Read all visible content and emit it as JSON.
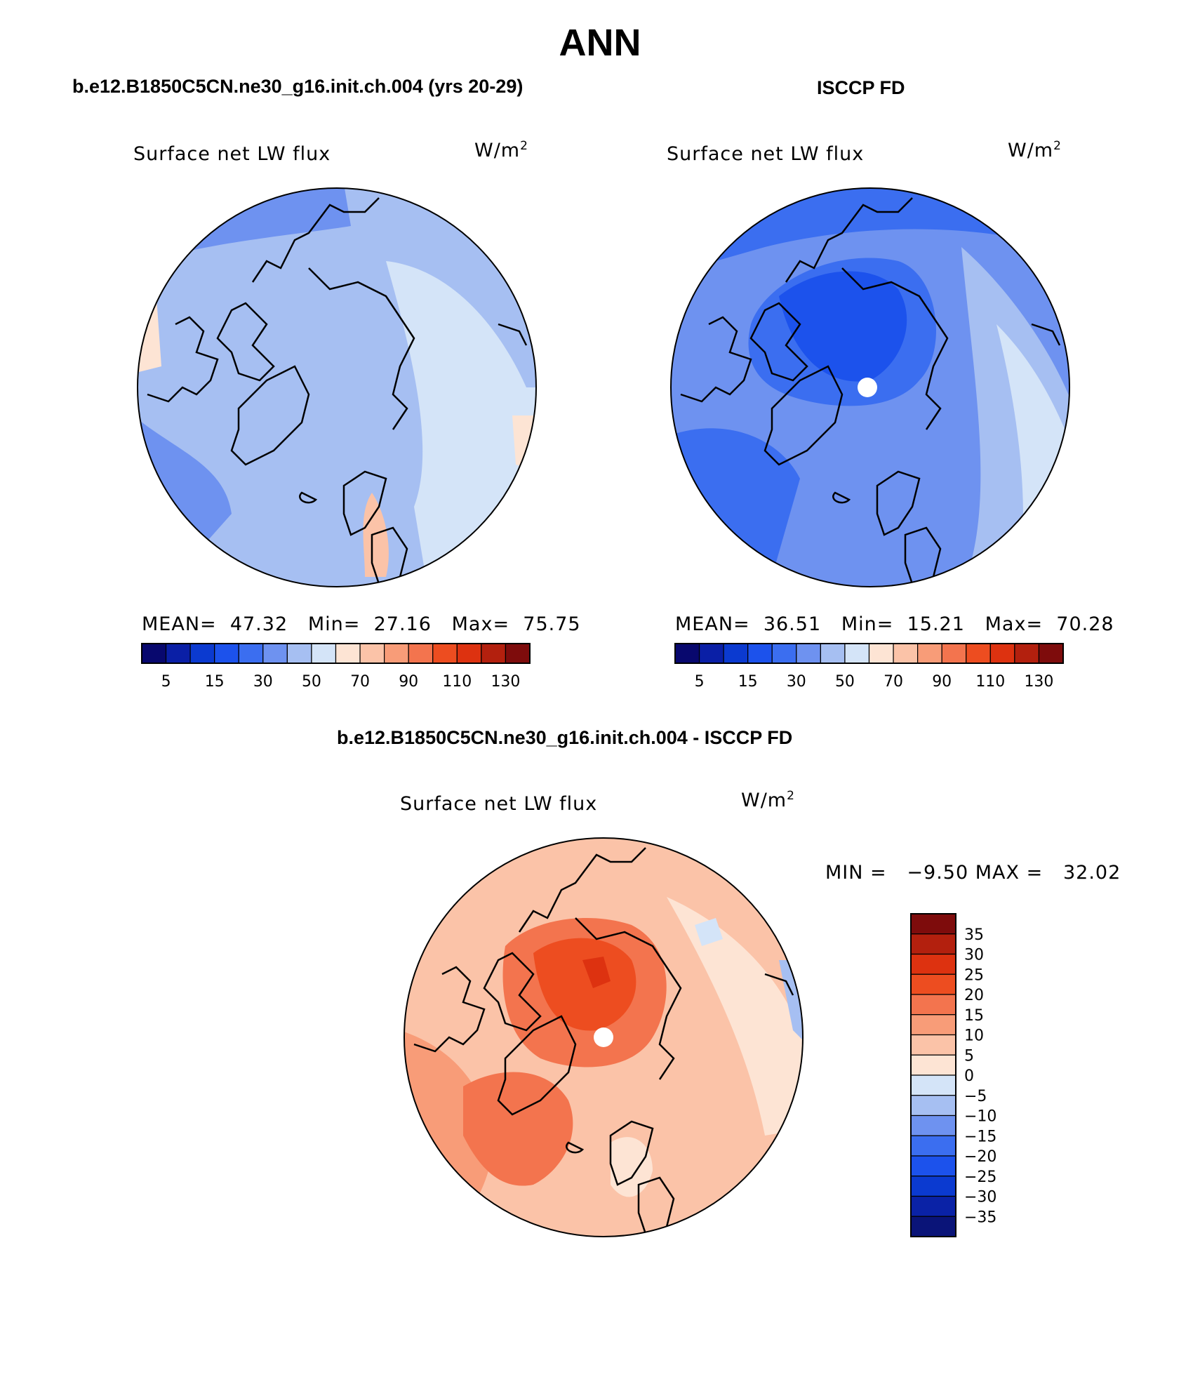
{
  "page": {
    "season": "ANN"
  },
  "panels": {
    "model": {
      "title": "b.e12.B1850C5CN.ne30_g16.init.ch.004 (yrs 20-29)",
      "variable": "Surface net LW flux",
      "units_base": "W/m",
      "units_exp": "2",
      "mean_label": "MEAN=",
      "mean": "47.32",
      "min_label": "Min=",
      "min": "27.16",
      "max_label": "Max=",
      "max": "75.75"
    },
    "obs": {
      "title": "ISCCP FD",
      "variable": "Surface net LW flux",
      "units_base": "W/m",
      "units_exp": "2",
      "mean_label": "MEAN=",
      "mean": "36.51",
      "min_label": "Min=",
      "min": "15.21",
      "max_label": "Max=",
      "max": "70.28"
    },
    "diff": {
      "title": "b.e12.B1850C5CN.ne30_g16.init.ch.004 - ISCCP FD",
      "variable": "Surface net LW flux",
      "units_base": "W/m",
      "units_exp": "2",
      "min_label": "MIN =",
      "min": "−9.50",
      "max_label": "MAX =",
      "max": "32.02"
    }
  },
  "colorbars": {
    "absolute": {
      "colors": [
        "#08086e",
        "#0a1fa6",
        "#0b3ad0",
        "#1c52ec",
        "#3b6ef0",
        "#6e92f0",
        "#a6bff2",
        "#d4e4f8",
        "#fde4d4",
        "#fbc3a8",
        "#f89c78",
        "#f3744e",
        "#ed4d20",
        "#dd3210",
        "#b3200e",
        "#7e0c0c"
      ],
      "tick_labels": [
        "5",
        "15",
        "30",
        "50",
        "70",
        "90",
        "110",
        "130"
      ]
    },
    "diff": {
      "colors": [
        "#0a1478",
        "#0a22a6",
        "#0b3ad0",
        "#1c52ec",
        "#3b6ef0",
        "#6e92f0",
        "#a6bff2",
        "#d4e4f8",
        "#fde4d4",
        "#fbc3a8",
        "#f89c78",
        "#f3744e",
        "#ed4d20",
        "#dd3210",
        "#b3200e",
        "#7e0c0c"
      ],
      "tick_labels": [
        "−35",
        "−30",
        "−25",
        "−20",
        "−15",
        "−10",
        "−5",
        "0",
        "5",
        "10",
        "15",
        "20",
        "25",
        "30",
        "35"
      ]
    }
  },
  "map_colors": {
    "model": {
      "base": "#a6bff2",
      "ocean": "#d4e4f8",
      "mid": "#6e92f0",
      "warm": "#fde4d4",
      "warm2": "#fbc3a8"
    },
    "obs": {
      "base": "#3b6ef0",
      "mid": "#6e92f0",
      "light": "#a6bff2",
      "lighter": "#d4e4f8",
      "dark": "#1c52ec",
      "warm": "#fde4d4"
    },
    "diff": {
      "base": "#fbc3a8",
      "mid": "#f89c78",
      "strong": "#f3744e",
      "stronger": "#ed4d20",
      "light": "#fde4d4",
      "cool": "#d4e4f8",
      "cool2": "#a6bff2"
    }
  }
}
